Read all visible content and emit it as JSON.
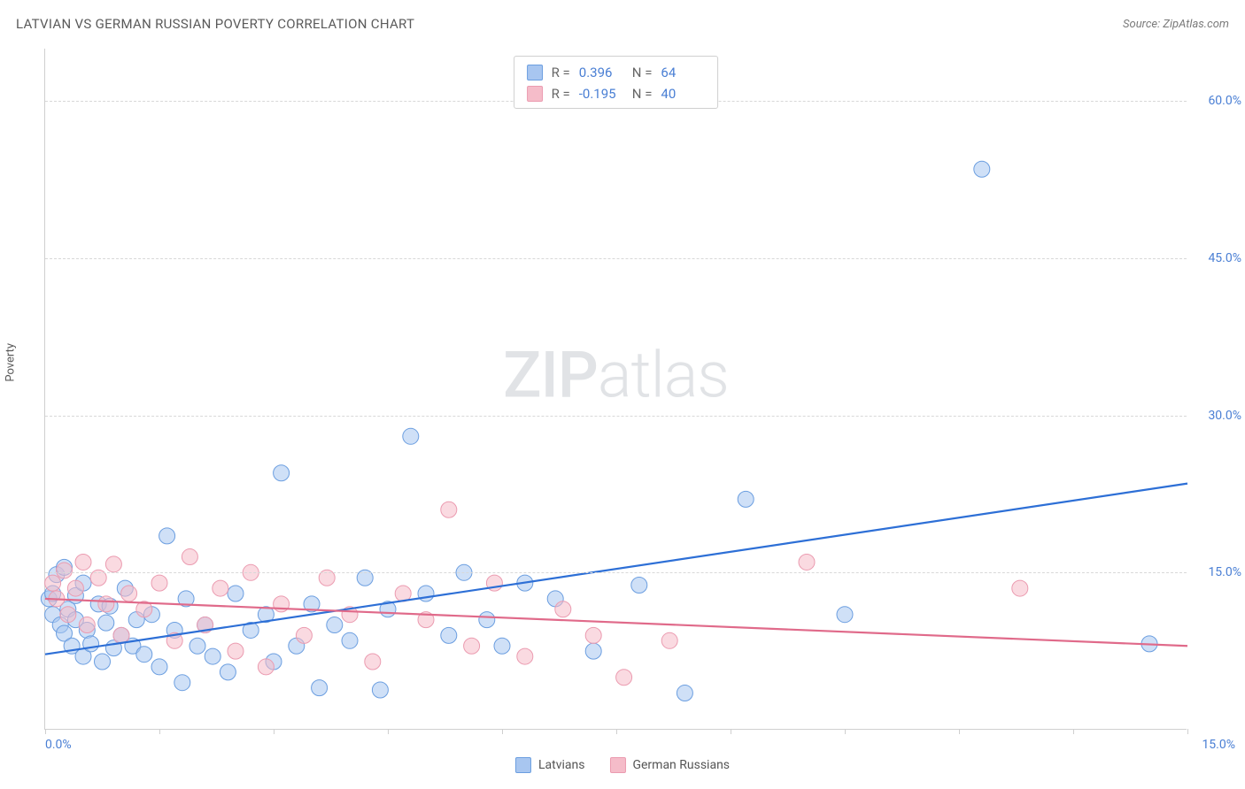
{
  "title": "LATVIAN VS GERMAN RUSSIAN POVERTY CORRELATION CHART",
  "source": "Source: ZipAtlas.com",
  "watermark_a": "ZIP",
  "watermark_b": "atlas",
  "chart": {
    "type": "scatter",
    "y_label": "Poverty",
    "x_min": 0.0,
    "x_max": 15.0,
    "y_min": 0.0,
    "y_max": 65.0,
    "x_tick_labels": {
      "min": "0.0%",
      "max": "15.0%"
    },
    "x_tick_positions": [
      0,
      1.5,
      3.0,
      4.5,
      6.0,
      7.5,
      9.0,
      10.5,
      12.0,
      13.5,
      15.0
    ],
    "y_ticks": [
      {
        "v": 15.0,
        "label": "15.0%"
      },
      {
        "v": 30.0,
        "label": "30.0%"
      },
      {
        "v": 45.0,
        "label": "45.0%"
      },
      {
        "v": 60.0,
        "label": "60.0%"
      }
    ],
    "grid_color": "#d8d8d8",
    "background_color": "#ffffff",
    "axis_color": "#cfcfcf",
    "label_color": "#4a7fd4",
    "marker_radius": 9,
    "marker_opacity": 0.55,
    "line_width": 2.2,
    "series": [
      {
        "name": "Latvians",
        "color_fill": "#a8c6f0",
        "color_stroke": "#6b9ee0",
        "line_color": "#2d6fd6",
        "stats": {
          "R": "0.396",
          "N": "64"
        },
        "trend": {
          "x1": 0.0,
          "y1": 7.2,
          "x2": 15.0,
          "y2": 23.5
        },
        "points": [
          [
            0.05,
            12.5
          ],
          [
            0.1,
            13.0
          ],
          [
            0.1,
            11.0
          ],
          [
            0.15,
            14.8
          ],
          [
            0.2,
            10.0
          ],
          [
            0.25,
            9.2
          ],
          [
            0.25,
            15.5
          ],
          [
            0.3,
            11.5
          ],
          [
            0.35,
            8.0
          ],
          [
            0.4,
            10.5
          ],
          [
            0.4,
            12.8
          ],
          [
            0.5,
            7.0
          ],
          [
            0.5,
            14.0
          ],
          [
            0.55,
            9.5
          ],
          [
            0.6,
            8.2
          ],
          [
            0.7,
            12.0
          ],
          [
            0.75,
            6.5
          ],
          [
            0.8,
            10.2
          ],
          [
            0.85,
            11.8
          ],
          [
            0.9,
            7.8
          ],
          [
            1.0,
            9.0
          ],
          [
            1.05,
            13.5
          ],
          [
            1.15,
            8.0
          ],
          [
            1.2,
            10.5
          ],
          [
            1.3,
            7.2
          ],
          [
            1.4,
            11.0
          ],
          [
            1.5,
            6.0
          ],
          [
            1.6,
            18.5
          ],
          [
            1.7,
            9.5
          ],
          [
            1.8,
            4.5
          ],
          [
            1.85,
            12.5
          ],
          [
            2.0,
            8.0
          ],
          [
            2.1,
            10.0
          ],
          [
            2.2,
            7.0
          ],
          [
            2.4,
            5.5
          ],
          [
            2.5,
            13.0
          ],
          [
            2.7,
            9.5
          ],
          [
            2.9,
            11.0
          ],
          [
            3.0,
            6.5
          ],
          [
            3.1,
            24.5
          ],
          [
            3.3,
            8.0
          ],
          [
            3.5,
            12.0
          ],
          [
            3.6,
            4.0
          ],
          [
            3.8,
            10.0
          ],
          [
            4.0,
            8.5
          ],
          [
            4.2,
            14.5
          ],
          [
            4.4,
            3.8
          ],
          [
            4.5,
            11.5
          ],
          [
            4.8,
            28.0
          ],
          [
            5.0,
            13.0
          ],
          [
            5.3,
            9.0
          ],
          [
            5.5,
            15.0
          ],
          [
            5.8,
            10.5
          ],
          [
            6.0,
            8.0
          ],
          [
            6.3,
            14.0
          ],
          [
            6.7,
            12.5
          ],
          [
            7.2,
            7.5
          ],
          [
            7.8,
            13.8
          ],
          [
            8.4,
            3.5
          ],
          [
            9.2,
            22.0
          ],
          [
            10.5,
            11.0
          ],
          [
            12.3,
            53.5
          ],
          [
            14.5,
            8.2
          ]
        ]
      },
      {
        "name": "German Russians",
        "color_fill": "#f5bcc9",
        "color_stroke": "#eb9bb0",
        "line_color": "#e06a8a",
        "stats": {
          "R": "-0.195",
          "N": "40"
        },
        "trend": {
          "x1": 0.0,
          "y1": 12.5,
          "x2": 15.0,
          "y2": 8.0
        },
        "points": [
          [
            0.1,
            14.0
          ],
          [
            0.15,
            12.5
          ],
          [
            0.25,
            15.2
          ],
          [
            0.3,
            11.0
          ],
          [
            0.4,
            13.5
          ],
          [
            0.5,
            16.0
          ],
          [
            0.55,
            10.0
          ],
          [
            0.7,
            14.5
          ],
          [
            0.8,
            12.0
          ],
          [
            0.9,
            15.8
          ],
          [
            1.0,
            9.0
          ],
          [
            1.1,
            13.0
          ],
          [
            1.3,
            11.5
          ],
          [
            1.5,
            14.0
          ],
          [
            1.7,
            8.5
          ],
          [
            1.9,
            16.5
          ],
          [
            2.1,
            10.0
          ],
          [
            2.3,
            13.5
          ],
          [
            2.5,
            7.5
          ],
          [
            2.7,
            15.0
          ],
          [
            2.9,
            6.0
          ],
          [
            3.1,
            12.0
          ],
          [
            3.4,
            9.0
          ],
          [
            3.7,
            14.5
          ],
          [
            4.0,
            11.0
          ],
          [
            4.3,
            6.5
          ],
          [
            4.7,
            13.0
          ],
          [
            5.0,
            10.5
          ],
          [
            5.3,
            21.0
          ],
          [
            5.6,
            8.0
          ],
          [
            5.9,
            14.0
          ],
          [
            6.3,
            7.0
          ],
          [
            6.8,
            11.5
          ],
          [
            7.2,
            9.0
          ],
          [
            7.6,
            5.0
          ],
          [
            8.2,
            8.5
          ],
          [
            10.0,
            16.0
          ],
          [
            12.8,
            13.5
          ]
        ]
      }
    ]
  },
  "stats_prefix_R": "R =",
  "stats_prefix_N": "N ="
}
